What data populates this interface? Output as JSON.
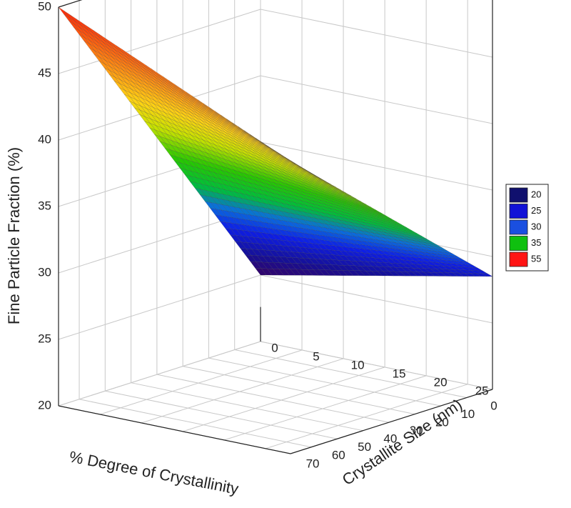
{
  "chart_data": {
    "type": "surface",
    "zlabel": "Fine Particle Fraction (%)",
    "xlabel": "% Degree of Crystallinity",
    "ylabel": "Crystallite Size (nm)",
    "x_ticks": [
      70,
      60,
      50,
      40,
      30,
      20,
      10,
      0
    ],
    "y_ticks": [
      25,
      20,
      15,
      10,
      5,
      0
    ],
    "z_ticks": [
      20,
      25,
      30,
      35,
      40,
      45,
      50
    ],
    "xlim": [
      0,
      78
    ],
    "ylim": [
      0,
      28
    ],
    "zlim": [
      20,
      50
    ],
    "grid": true,
    "surface_corners": [
      {
        "x": 78,
        "y": 0,
        "z": 50
      },
      {
        "x": 78,
        "y": 28,
        "z": 42
      },
      {
        "x": 0,
        "y": 0,
        "z": 25
      },
      {
        "x": 0,
        "y": 28,
        "z": 28.5
      }
    ],
    "legend": {
      "placement": "right",
      "entries": [
        {
          "label": "20",
          "color": "#10106e"
        },
        {
          "label": "25",
          "color": "#1212d6"
        },
        {
          "label": "30",
          "color": "#1a4fe0"
        },
        {
          "label": "35",
          "color": "#0fc00f"
        },
        {
          "label": "55",
          "color": "#ff1414"
        }
      ]
    }
  }
}
